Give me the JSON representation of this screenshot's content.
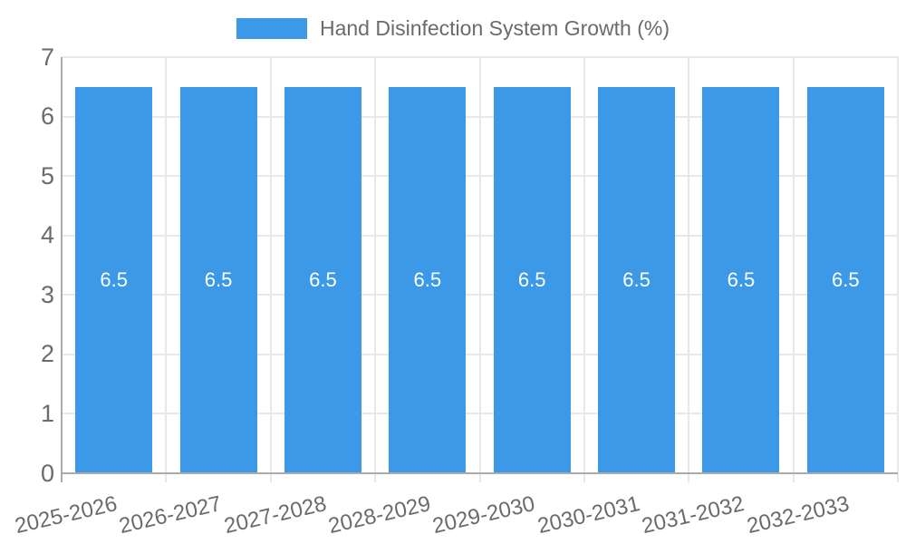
{
  "chart_data": {
    "type": "bar",
    "title": "Hand Disinfection System Growth (%)",
    "categories": [
      "2025-2026",
      "2026-2027",
      "2027-2028",
      "2028-2029",
      "2029-2030",
      "2030-2031",
      "2031-2032",
      "2032-2033"
    ],
    "values": [
      6.5,
      6.5,
      6.5,
      6.5,
      6.5,
      6.5,
      6.5,
      6.5
    ],
    "bar_labels": [
      "6.5",
      "6.5",
      "6.5",
      "6.5",
      "6.5",
      "6.5",
      "6.5",
      "6.5"
    ],
    "ylim": [
      0,
      7
    ],
    "yticks": [
      0,
      1,
      2,
      3,
      4,
      5,
      6,
      7
    ],
    "xlabel": "",
    "ylabel": "",
    "legend_position": "top-center",
    "grid": true,
    "colors": {
      "bar": "#3b99e8",
      "text": "#6b6b6b",
      "grid": "#e8e8e8",
      "axis": "#ababab",
      "bar_label": "#ffffff",
      "background": "#ffffff"
    }
  }
}
